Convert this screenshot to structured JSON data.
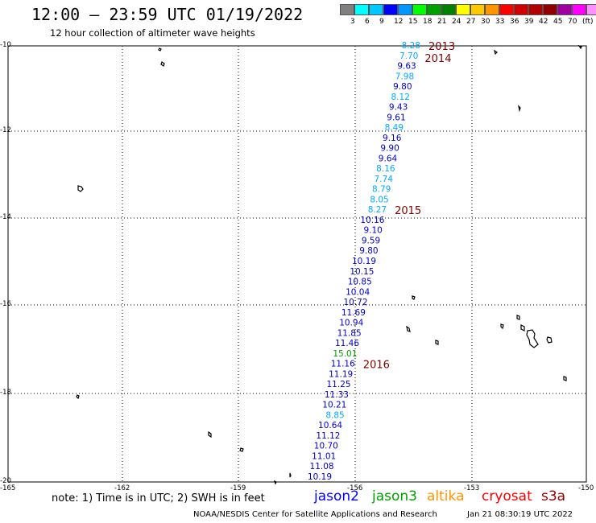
{
  "title": "12:00 – 23:59 UTC 01/19/2022",
  "subtitle": "12 hour collection of altimeter wave heights",
  "scale": {
    "colors": [
      "#808080",
      "#00ffff",
      "#00c8ff",
      "#0000ff",
      "#0096ff",
      "#00ff00",
      "#00a000",
      "#008000",
      "#ffff00",
      "#ffc800",
      "#ff9600",
      "#ff0000",
      "#d00000",
      "#b00000",
      "#900000",
      "#a000a0",
      "#ff00ff",
      "#ff90ff",
      "#000000"
    ],
    "labels": [
      "3",
      "6",
      "9",
      "12",
      "15",
      "18",
      "21",
      "24",
      "27",
      "30",
      "33",
      "36",
      "39",
      "42",
      "45",
      "70",
      "(ft)"
    ]
  },
  "axes": {
    "y_labels": [
      "-10",
      "-12",
      "-14",
      "-16",
      "-18",
      "-20"
    ],
    "x_labels": [
      "-165",
      "-162",
      "-159",
      "-156",
      "-153",
      "-150"
    ]
  },
  "year_labels": [
    "2013",
    "2014",
    "2015",
    "2016"
  ],
  "observations": [
    {
      "v": "8.28",
      "c": "#00aaff"
    },
    {
      "v": "7.70",
      "c": "#00aaff"
    },
    {
      "v": "9.63",
      "c": "#0000cc"
    },
    {
      "v": "7.98",
      "c": "#00aaff"
    },
    {
      "v": "9.80",
      "c": "#0000cc"
    },
    {
      "v": "8.12",
      "c": "#00aaff"
    },
    {
      "v": "9.43",
      "c": "#0000cc"
    },
    {
      "v": "9.61",
      "c": "#0000cc"
    },
    {
      "v": "8.49",
      "c": "#00aaff"
    },
    {
      "v": "9.16",
      "c": "#0000cc"
    },
    {
      "v": "9.90",
      "c": "#0000cc"
    },
    {
      "v": "9.64",
      "c": "#0000cc"
    },
    {
      "v": "8.16",
      "c": "#00aaff"
    },
    {
      "v": "7.74",
      "c": "#00aaff"
    },
    {
      "v": "8.79",
      "c": "#00aaff"
    },
    {
      "v": "8.05",
      "c": "#00aaff"
    },
    {
      "v": "8.27",
      "c": "#00aaff"
    },
    {
      "v": "10.16",
      "c": "#0000cc"
    },
    {
      "v": "9.10",
      "c": "#0000cc"
    },
    {
      "v": "9.59",
      "c": "#0000cc"
    },
    {
      "v": "9.80",
      "c": "#0000cc"
    },
    {
      "v": "10.19",
      "c": "#0000cc"
    },
    {
      "v": "10.15",
      "c": "#0000cc"
    },
    {
      "v": "10.85",
      "c": "#0000cc"
    },
    {
      "v": "10.04",
      "c": "#0000cc"
    },
    {
      "v": "10.72",
      "c": "#0000cc"
    },
    {
      "v": "11.69",
      "c": "#0000cc"
    },
    {
      "v": "10.94",
      "c": "#0000cc"
    },
    {
      "v": "11.85",
      "c": "#0000cc"
    },
    {
      "v": "11.46",
      "c": "#0000cc"
    },
    {
      "v": "15.01",
      "c": "#00a000"
    },
    {
      "v": "11.16",
      "c": "#0000cc"
    },
    {
      "v": "11.19",
      "c": "#0000cc"
    },
    {
      "v": "11.25",
      "c": "#0000cc"
    },
    {
      "v": "11.33",
      "c": "#0000cc"
    },
    {
      "v": "10.21",
      "c": "#0000cc"
    },
    {
      "v": "8.85",
      "c": "#00aaff"
    },
    {
      "v": "10.64",
      "c": "#0000cc"
    },
    {
      "v": "11.12",
      "c": "#0000cc"
    },
    {
      "v": "10.70",
      "c": "#0000cc"
    },
    {
      "v": "11.01",
      "c": "#0000cc"
    },
    {
      "v": "11.08",
      "c": "#0000cc"
    },
    {
      "v": "10.19",
      "c": "#0000cc"
    }
  ],
  "note": "note: 1) Time is in UTC; 2) SWH is in feet",
  "legend": [
    {
      "name": "jason2",
      "color": "#0000ff"
    },
    {
      "name": "jason3",
      "color": "#00a000"
    },
    {
      "name": "altika",
      "color": "#ff9600"
    },
    {
      "name": "cryosat",
      "color": "#ff0000"
    },
    {
      "name": "s3a",
      "color": "#900000"
    }
  ],
  "footer": "NOAA/NESDIS Center for Satellite Applications and Research",
  "footer_time": "Jan 21 08:30:19 UTC 2022"
}
